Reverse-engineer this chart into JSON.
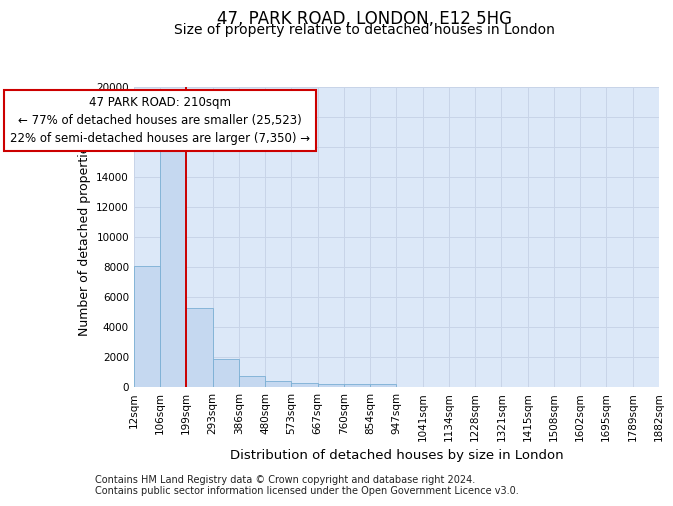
{
  "title1": "47, PARK ROAD, LONDON, E12 5HG",
  "title2": "Size of property relative to detached houses in London",
  "xlabel": "Distribution of detached houses by size in London",
  "ylabel": "Number of detached properties",
  "footnote1": "Contains HM Land Registry data © Crown copyright and database right 2024.",
  "footnote2": "Contains public sector information licensed under the Open Government Licence v3.0.",
  "annotation_line1": "47 PARK ROAD: 210sqm",
  "annotation_line2": "← 77% of detached houses are smaller (25,523)",
  "annotation_line3": "22% of semi-detached houses are larger (7,350) →",
  "bar_left_edges": [
    12,
    106,
    199,
    293,
    386,
    480,
    573,
    667,
    760,
    854,
    947,
    1041,
    1134,
    1228,
    1321,
    1415,
    1508,
    1602,
    1695,
    1789
  ],
  "bar_widths": [
    94,
    93,
    94,
    93,
    94,
    93,
    94,
    93,
    94,
    93,
    94,
    93,
    94,
    93,
    94,
    93,
    94,
    93,
    94,
    93
  ],
  "bar_heights": [
    8100,
    16500,
    5300,
    1850,
    750,
    380,
    290,
    230,
    200,
    175,
    0,
    0,
    0,
    0,
    0,
    0,
    0,
    0,
    0,
    0
  ],
  "bar_color": "#c5d8f0",
  "bar_edge_color": "#7aafd4",
  "vline_x": 199,
  "vline_color": "#cc0000",
  "ylim": [
    0,
    20000
  ],
  "yticks": [
    0,
    2000,
    4000,
    6000,
    8000,
    10000,
    12000,
    14000,
    16000,
    18000,
    20000
  ],
  "xtick_labels": [
    "12sqm",
    "106sqm",
    "199sqm",
    "293sqm",
    "386sqm",
    "480sqm",
    "573sqm",
    "667sqm",
    "760sqm",
    "854sqm",
    "947sqm",
    "1041sqm",
    "1134sqm",
    "1228sqm",
    "1321sqm",
    "1415sqm",
    "1508sqm",
    "1602sqm",
    "1695sqm",
    "1789sqm",
    "1882sqm"
  ],
  "grid_color": "#c8d4e8",
  "bg_color": "#dce8f8",
  "fig_bg_color": "#ffffff",
  "title1_fontsize": 12,
  "title2_fontsize": 10,
  "axis_label_fontsize": 9,
  "tick_fontsize": 7.5,
  "annotation_fontsize": 8.5,
  "footnote_fontsize": 7
}
